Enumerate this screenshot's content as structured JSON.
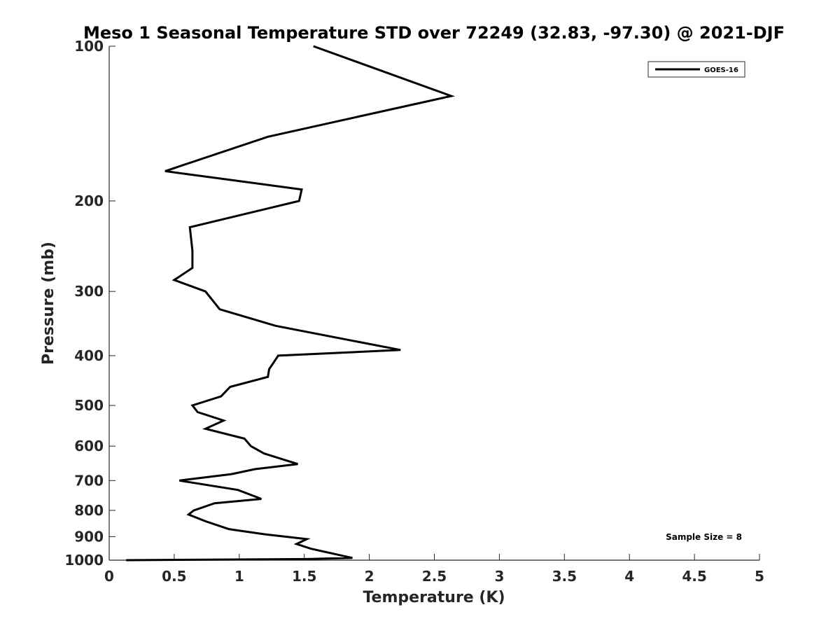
{
  "chart_data": {
    "type": "line",
    "title": "Meso 1 Seasonal Temperature STD over 72249 (32.83, -97.30) @ 2021-DJF",
    "xlabel": "Temperature (K)",
    "ylabel": "Pressure (mb)",
    "xlim": [
      0,
      5
    ],
    "ylim": [
      100,
      1000
    ],
    "yscale": "log",
    "y_reversed": true,
    "xticks": [
      0,
      0.5,
      1,
      1.5,
      2,
      2.5,
      3,
      3.5,
      4,
      4.5,
      5
    ],
    "xtick_labels": [
      "0",
      "0.5",
      "1",
      "1.5",
      "2",
      "2.5",
      "3",
      "3.5",
      "4",
      "4.5",
      "5"
    ],
    "yticks": [
      100,
      200,
      300,
      400,
      500,
      600,
      700,
      800,
      900,
      1000
    ],
    "ytick_labels": [
      "100",
      "200",
      "300",
      "400",
      "500",
      "600",
      "700",
      "800",
      "900",
      "1000"
    ],
    "grid": false,
    "legend_position": "top-right",
    "annotation": "Sample Size = 8",
    "line_color": "#000000",
    "series": [
      {
        "name": "GOES-16",
        "x": [
          1.57,
          2.63,
          1.22,
          0.43,
          1.48,
          1.46,
          0.62,
          0.64,
          0.64,
          0.5,
          0.74,
          0.85,
          1.28,
          1.89,
          2.24,
          1.3,
          1.23,
          1.22,
          0.93,
          0.86,
          0.64,
          0.68,
          0.88,
          0.74,
          1.04,
          1.09,
          1.19,
          1.45,
          1.12,
          0.94,
          0.54,
          0.99,
          1.17,
          0.81,
          0.65,
          0.61,
          0.74,
          0.92,
          1.19,
          1.52,
          1.44,
          1.55,
          1.87,
          1.52,
          0.13
        ],
        "y": [
          100,
          125,
          150,
          175,
          190,
          200,
          225,
          250,
          270,
          285,
          300,
          325,
          350,
          375,
          390,
          400,
          425,
          440,
          460,
          480,
          500,
          515,
          535,
          555,
          580,
          600,
          620,
          650,
          665,
          680,
          700,
          730,
          760,
          775,
          800,
          815,
          840,
          870,
          890,
          910,
          930,
          950,
          990,
          995,
          1000
        ]
      }
    ]
  }
}
